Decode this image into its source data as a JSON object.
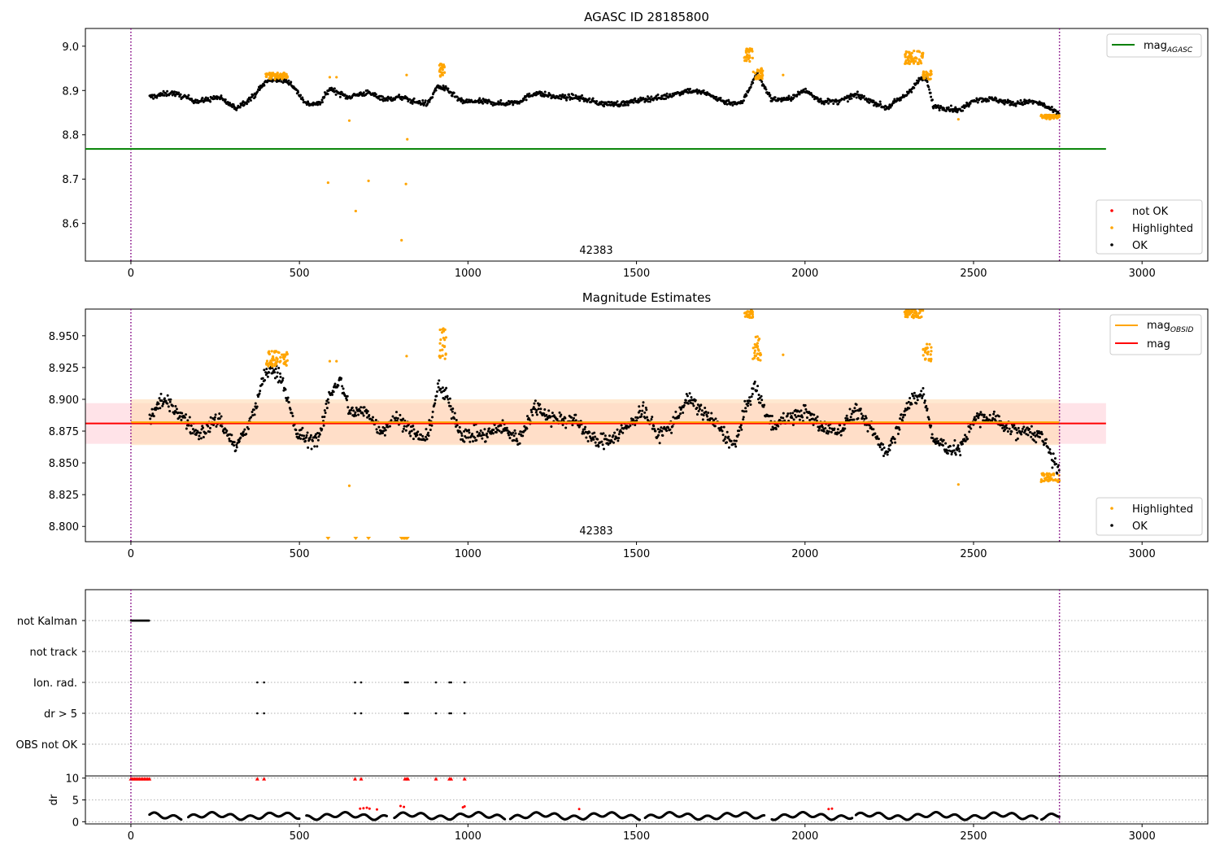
{
  "figure": {
    "panel1_title": "AGASC ID 28185800",
    "panel2_title": "Magnitude Estimates",
    "obsid_label": "42383"
  },
  "chart_data": [
    {
      "id": "agasc-panel",
      "type": "scatter",
      "title": "AGASC ID 28185800",
      "xlim": [
        -135,
        3195
      ],
      "ylim": [
        8.515,
        9.04
      ],
      "x_ticks": [
        0,
        500,
        1000,
        1500,
        2000,
        2500,
        3000
      ],
      "y_ticks": [
        8.6,
        8.7,
        8.8,
        8.9,
        9.0
      ],
      "y_tick_labels": [
        "8.6",
        "8.7",
        "8.8",
        "8.9",
        "9.0"
      ],
      "obs_boundaries": [
        0,
        2755
      ],
      "obsid_annotation": "42383",
      "legend_lines": [
        {
          "name": "mag",
          "subscript": "AGASC",
          "color": "#008000",
          "value": 8.768,
          "x_range": [
            -135,
            2893
          ]
        }
      ],
      "legend_points": [
        {
          "name": "not OK",
          "color": "#ff0000"
        },
        {
          "name": "Highlighted",
          "color": "#ffa500"
        },
        {
          "name": "OK",
          "color": "#000000"
        }
      ],
      "series_profile": {
        "x_range": [
          55,
          2755
        ],
        "knots_x": [
          55,
          120,
          200,
          260,
          310,
          360,
          400,
          430,
          470,
          520,
          560,
          590,
          640,
          700,
          760,
          800,
          840,
          880,
          910,
          940,
          980,
          1050,
          1100,
          1150,
          1200,
          1260,
          1320,
          1400,
          1460,
          1520,
          1580,
          1650,
          1700,
          1760,
          1810,
          1835,
          1855,
          1870,
          1900,
          1950,
          2000,
          2050,
          2100,
          2150,
          2200,
          2240,
          2270,
          2300,
          2340,
          2360,
          2380,
          2420,
          2460,
          2500,
          2560,
          2620,
          2670,
          2700,
          2755
        ],
        "knots_y": [
          8.885,
          8.895,
          8.875,
          8.885,
          8.86,
          8.885,
          8.92,
          8.925,
          8.92,
          8.87,
          8.87,
          8.905,
          8.885,
          8.895,
          8.88,
          8.885,
          8.875,
          8.87,
          8.91,
          8.9,
          8.875,
          8.875,
          8.87,
          8.875,
          8.895,
          8.885,
          8.885,
          8.87,
          8.87,
          8.88,
          8.885,
          8.9,
          8.895,
          8.875,
          8.87,
          8.905,
          8.94,
          8.92,
          8.88,
          8.88,
          8.9,
          8.875,
          8.875,
          8.89,
          8.875,
          8.86,
          8.875,
          8.89,
          8.925,
          8.925,
          8.865,
          8.86,
          8.855,
          8.88,
          8.88,
          8.87,
          8.875,
          8.87,
          8.845
        ]
      },
      "highlight_clusters": [
        {
          "x": [
            400,
            465
          ],
          "y": [
            8.925,
            8.94
          ]
        },
        {
          "x": [
            1820,
            1845
          ],
          "y": [
            8.965,
            8.995
          ]
        },
        {
          "x": [
            1845,
            1875
          ],
          "y": [
            8.925,
            8.95
          ]
        },
        {
          "x": [
            2295,
            2350
          ],
          "y": [
            8.96,
            8.99
          ]
        },
        {
          "x": [
            2350,
            2375
          ],
          "y": [
            8.925,
            8.945
          ]
        },
        {
          "x": [
            915,
            935
          ],
          "y": [
            8.93,
            8.96
          ]
        },
        {
          "x": [
            2700,
            2755
          ],
          "y": [
            8.835,
            8.845
          ]
        }
      ],
      "highlight_points": [
        {
          "x": 585,
          "y": 8.692
        },
        {
          "x": 648,
          "y": 8.832
        },
        {
          "x": 667,
          "y": 8.628
        },
        {
          "x": 705,
          "y": 8.696
        },
        {
          "x": 803,
          "y": 8.562
        },
        {
          "x": 816,
          "y": 8.689
        },
        {
          "x": 820,
          "y": 8.79
        },
        {
          "x": 818,
          "y": 8.935
        },
        {
          "x": 590,
          "y": 8.93
        },
        {
          "x": 610,
          "y": 8.93
        },
        {
          "x": 1935,
          "y": 8.935
        },
        {
          "x": 2455,
          "y": 8.835
        }
      ]
    },
    {
      "id": "magnitude-panel",
      "type": "scatter",
      "title": "Magnitude Estimates",
      "xlim": [
        -135,
        3195
      ],
      "ylim": [
        8.788,
        8.971
      ],
      "x_ticks": [
        0,
        500,
        1000,
        1500,
        2000,
        2500,
        3000
      ],
      "y_ticks": [
        8.8,
        8.825,
        8.85,
        8.875,
        8.9,
        8.925,
        8.95
      ],
      "y_tick_labels": [
        "8.800",
        "8.825",
        "8.850",
        "8.875",
        "8.900",
        "8.925",
        "8.950"
      ],
      "obs_boundaries": [
        0,
        2755
      ],
      "obsid_annotation": "42383",
      "legend_lines": [
        {
          "name": "mag",
          "subscript": "OBSID",
          "color": "#ffa500",
          "value": 8.882,
          "x_range": [
            0,
            2755
          ]
        },
        {
          "name": "mag",
          "subscript": "",
          "color": "#ff0000",
          "value": 8.881,
          "x_range": [
            -135,
            2893
          ]
        }
      ],
      "bands": [
        {
          "y": [
            8.865,
            8.897
          ],
          "x_range": [
            -135,
            2893
          ],
          "color": "#ffc0cb"
        },
        {
          "y": [
            8.864,
            8.9
          ],
          "x_range": [
            0,
            2755
          ],
          "color": "#ffdab3"
        }
      ],
      "legend_points": [
        {
          "name": "Highlighted",
          "color": "#ffa500"
        },
        {
          "name": "OK",
          "color": "#000000"
        }
      ],
      "series_profile": {
        "x_range": [
          55,
          2755
        ],
        "knots_x": [
          55,
          90,
          140,
          200,
          260,
          310,
          360,
          390,
          420,
          450,
          490,
          530,
          560,
          590,
          620,
          650,
          700,
          740,
          780,
          820,
          850,
          880,
          910,
          940,
          980,
          1050,
          1100,
          1150,
          1200,
          1250,
          1320,
          1380,
          1430,
          1480,
          1520,
          1560,
          1600,
          1650,
          1700,
          1760,
          1790,
          1820,
          1850,
          1900,
          1950,
          2000,
          2050,
          2100,
          2150,
          2200,
          2240,
          2270,
          2300,
          2350,
          2380,
          2420,
          2460,
          2500,
          2560,
          2620,
          2670,
          2700,
          2755
        ],
        "knots_y": [
          8.885,
          8.9,
          8.89,
          8.872,
          8.885,
          8.862,
          8.885,
          8.915,
          8.925,
          8.915,
          8.873,
          8.868,
          8.87,
          8.905,
          8.915,
          8.89,
          8.89,
          8.875,
          8.885,
          8.88,
          8.87,
          8.87,
          8.91,
          8.9,
          8.872,
          8.872,
          8.878,
          8.868,
          8.895,
          8.885,
          8.883,
          8.866,
          8.87,
          8.88,
          8.893,
          8.872,
          8.878,
          8.9,
          8.89,
          8.873,
          8.862,
          8.89,
          8.91,
          8.88,
          8.885,
          8.89,
          8.878,
          8.875,
          8.892,
          8.875,
          8.858,
          8.875,
          8.895,
          8.905,
          8.868,
          8.862,
          8.86,
          8.885,
          8.885,
          8.875,
          8.875,
          8.87,
          8.843
        ]
      },
      "highlight_clusters": [
        {
          "x": [
            400,
            465
          ],
          "y": [
            8.926,
            8.938
          ]
        },
        {
          "x": [
            1820,
            1845
          ],
          "y": [
            8.964,
            8.971
          ]
        },
        {
          "x": [
            1845,
            1870
          ],
          "y": [
            8.93,
            8.95
          ]
        },
        {
          "x": [
            2295,
            2350
          ],
          "y": [
            8.964,
            8.971
          ]
        },
        {
          "x": [
            2350,
            2375
          ],
          "y": [
            8.93,
            8.945
          ]
        },
        {
          "x": [
            915,
            935
          ],
          "y": [
            8.93,
            8.957
          ]
        },
        {
          "x": [
            2700,
            2755
          ],
          "y": [
            8.835,
            8.842
          ]
        }
      ],
      "highlight_points": [
        {
          "x": 590,
          "y": 8.93
        },
        {
          "x": 610,
          "y": 8.93
        },
        {
          "x": 648,
          "y": 8.832
        },
        {
          "x": 818,
          "y": 8.934
        },
        {
          "x": 1935,
          "y": 8.935
        },
        {
          "x": 2455,
          "y": 8.833
        }
      ],
      "offscale_markers_x": [
        585,
        667,
        705,
        803,
        808,
        812,
        816,
        820
      ]
    },
    {
      "id": "flags-panel",
      "type": "scatter",
      "xlim": [
        -135,
        3195
      ],
      "obs_boundaries": [
        0,
        2755
      ],
      "category_labels": [
        "not Kalman",
        "not track",
        "Ion. rad.",
        "dr > 5",
        "OBS not OK"
      ],
      "flags": [
        {
          "label": "not Kalman",
          "x_range": [
            0,
            55
          ]
        },
        {
          "label": "not track",
          "x": []
        },
        {
          "label": "Ion. rad.",
          "x": [
            375,
            395,
            665,
            683,
            813,
            818,
            822,
            905,
            945,
            950,
            990
          ]
        },
        {
          "label": "dr > 5",
          "x": [
            375,
            395,
            665,
            683,
            813,
            818,
            822,
            905,
            945,
            950,
            990
          ]
        },
        {
          "label": "OBS not OK",
          "x": []
        }
      ]
    },
    {
      "id": "dr-panel",
      "type": "scatter",
      "ylabel": "dr",
      "xlim": [
        -135,
        3195
      ],
      "ylim": [
        -0.5,
        10.5
      ],
      "y_ticks": [
        0,
        5,
        10
      ],
      "y_tick_labels": [
        "0",
        "5",
        "10"
      ],
      "x_ticks": [
        0,
        500,
        1000,
        1500,
        2000,
        2500,
        3000
      ],
      "obs_boundaries": [
        0,
        2755
      ],
      "clipped_x": [
        0,
        5,
        10,
        15,
        20,
        25,
        30,
        35,
        40,
        45,
        50,
        55,
        375,
        395,
        665,
        683,
        813,
        818,
        822,
        905,
        945,
        950,
        990
      ],
      "red_points": [
        {
          "x": 680,
          "y": 3.0
        },
        {
          "x": 690,
          "y": 3.1
        },
        {
          "x": 700,
          "y": 3.2
        },
        {
          "x": 708,
          "y": 3.0
        },
        {
          "x": 730,
          "y": 2.8
        },
        {
          "x": 800,
          "y": 3.6
        },
        {
          "x": 810,
          "y": 3.4
        },
        {
          "x": 985,
          "y": 3.3
        },
        {
          "x": 990,
          "y": 3.5
        },
        {
          "x": 1330,
          "y": 2.9
        },
        {
          "x": 2070,
          "y": 2.9
        },
        {
          "x": 2080,
          "y": 3.0
        }
      ],
      "series_profile": {
        "x_range": [
          55,
          2755
        ],
        "y_base": 1.3,
        "y_amp": 0.9,
        "gaps": [
          [
            150,
            170
          ],
          [
            500,
            520
          ],
          [
            760,
            780
          ],
          [
            1110,
            1125
          ],
          [
            1510,
            1525
          ],
          [
            1880,
            1900
          ],
          [
            2140,
            2150
          ],
          [
            2690,
            2700
          ]
        ]
      }
    }
  ]
}
